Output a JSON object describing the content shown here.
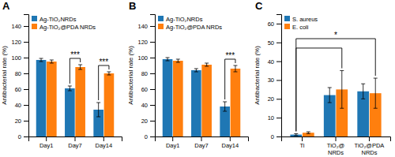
{
  "chart_data": [
    {
      "type": "bar",
      "title": "A",
      "categories": [
        "Day1",
        "Day7",
        "Day14"
      ],
      "series": [
        {
          "name": "Ag-TiO₂NRDs",
          "values": [
            97,
            61,
            34
          ],
          "errors": [
            2,
            3,
            9
          ]
        },
        {
          "name": "Ag-TiO₂@PDA NRDs",
          "values": [
            95,
            88,
            80
          ],
          "errors": [
            2,
            3,
            2
          ]
        }
      ],
      "y_label": "Antibacterial rate (%)",
      "ylim": [
        0,
        155
      ],
      "yticks": [
        0,
        20,
        40,
        60,
        80,
        100,
        120,
        140
      ],
      "legend": "upper-left",
      "annotations": [
        {
          "text": "***",
          "from": "Day7",
          "to": "Day7",
          "y": 99
        },
        {
          "text": "***",
          "from": "Day14",
          "to": "Day14",
          "y": 90
        }
      ]
    },
    {
      "type": "bar",
      "title": "B",
      "categories": [
        "Day1",
        "Day7",
        "Day14"
      ],
      "series": [
        {
          "name": "Ag-TiO₂NRDs",
          "values": [
            98,
            84,
            38
          ],
          "errors": [
            2,
            2,
            6
          ]
        },
        {
          "name": "Ag-TiO₂@PDA NRDs",
          "values": [
            96,
            91,
            86
          ],
          "errors": [
            2,
            2,
            4
          ]
        }
      ],
      "y_label": "Antibacterial rate (%)",
      "ylim": [
        0,
        155
      ],
      "yticks": [
        0,
        20,
        40,
        60,
        80,
        100,
        120,
        140
      ],
      "legend": "upper-left",
      "annotations": [
        {
          "text": "***",
          "from": "Day14",
          "to": "Day14",
          "y": 98
        }
      ]
    },
    {
      "type": "bar",
      "title": "C",
      "categories": [
        "Ti",
        "TiO₂@ NRDs",
        "TiO₂@PDA NRDs"
      ],
      "series": [
        {
          "name": "S. aureus",
          "values": [
            1,
            22,
            24
          ],
          "errors": [
            0.5,
            4,
            4
          ]
        },
        {
          "name": "E. coli",
          "values": [
            2,
            25,
            23
          ],
          "errors": [
            0.5,
            10,
            8
          ]
        }
      ],
      "y_label": "Antibacterial rate (%)",
      "ylim": [
        0,
        65
      ],
      "yticks": [
        0,
        10,
        20,
        30,
        40,
        50,
        60
      ],
      "legend": "upper-left",
      "annotations": [
        {
          "text": "*",
          "from": "Ti",
          "to": "TiO₂@PDA NRDs",
          "y": 52
        },
        {
          "from": "Ti",
          "to": "TiO₂@ NRDs",
          "y": 47
        }
      ]
    }
  ]
}
